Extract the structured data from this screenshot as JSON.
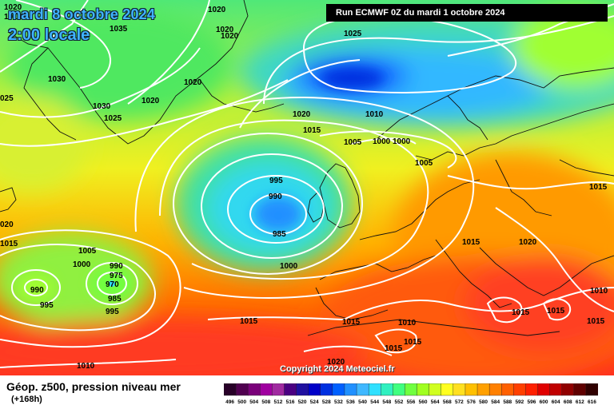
{
  "header": {
    "date": "mardi 8 octobre 2024",
    "time": "2:00 locale",
    "run": "Run ECMWF 0Z du mardi 1 octobre 2024"
  },
  "copyright": "Copyright 2024 Meteociel.fr",
  "footer": {
    "product": "Géop. z500, pression niveau mer",
    "lead": "(+168h)"
  },
  "legend": {
    "values": [
      "496",
      "500",
      "504",
      "508",
      "512",
      "516",
      "520",
      "524",
      "528",
      "532",
      "536",
      "540",
      "544",
      "548",
      "552",
      "556",
      "560",
      "564",
      "568",
      "572",
      "576",
      "580",
      "584",
      "588",
      "592",
      "596",
      "600",
      "604",
      "608",
      "612",
      "616"
    ],
    "colors": [
      "#280028",
      "#500050",
      "#7a007a",
      "#a000a0",
      "#a02aa0",
      "#4b0082",
      "#2010a0",
      "#0000c8",
      "#0030e0",
      "#0060ff",
      "#2090ff",
      "#40b8ff",
      "#30e0ff",
      "#30f0c0",
      "#40ff80",
      "#70ff40",
      "#a0ff20",
      "#d0ff20",
      "#ffff20",
      "#ffe020",
      "#ffc000",
      "#ffa000",
      "#ff8000",
      "#ff6000",
      "#ff4000",
      "#ff2000",
      "#e00000",
      "#c00000",
      "#900000",
      "#600000",
      "#300000"
    ]
  },
  "isobar_labels": [
    {
      "id": "l1",
      "text": "1020"
    },
    {
      "id": "l2",
      "text": "1035"
    },
    {
      "id": "l3",
      "text": "1020"
    },
    {
      "id": "l4",
      "text": "1020"
    },
    {
      "id": "l5",
      "text": "1025"
    },
    {
      "id": "l6",
      "text": "1030"
    },
    {
      "id": "l7",
      "text": "025"
    },
    {
      "id": "l8",
      "text": "1020"
    },
    {
      "id": "l9",
      "text": "1020"
    },
    {
      "id": "l10",
      "text": "1030"
    },
    {
      "id": "l11",
      "text": "1025"
    },
    {
      "id": "l12",
      "text": "1020"
    },
    {
      "id": "l13",
      "text": "1015"
    },
    {
      "id": "l14",
      "text": "1010"
    },
    {
      "id": "l15",
      "text": "1005"
    },
    {
      "id": "l16",
      "text": "1000"
    },
    {
      "id": "l17",
      "text": "1000"
    },
    {
      "id": "l18",
      "text": "1005"
    },
    {
      "id": "l19",
      "text": "995"
    },
    {
      "id": "l20",
      "text": "990"
    },
    {
      "id": "l21",
      "text": "985"
    },
    {
      "id": "l22",
      "text": "1000"
    },
    {
      "id": "l23",
      "text": "1015"
    },
    {
      "id": "l24",
      "text": "1020"
    },
    {
      "id": "l25",
      "text": "1015"
    },
    {
      "id": "l26",
      "text": "020"
    },
    {
      "id": "l27",
      "text": "1015"
    },
    {
      "id": "l28",
      "text": "1005"
    },
    {
      "id": "l29",
      "text": "1000"
    },
    {
      "id": "l30",
      "text": "990"
    },
    {
      "id": "l31",
      "text": "975"
    },
    {
      "id": "l32",
      "text": "970"
    },
    {
      "id": "l33",
      "text": "990"
    },
    {
      "id": "l34",
      "text": "985"
    },
    {
      "id": "l35",
      "text": "995"
    },
    {
      "id": "l36",
      "text": "995"
    },
    {
      "id": "l37",
      "text": "1015"
    },
    {
      "id": "l38",
      "text": "1015"
    },
    {
      "id": "l39",
      "text": "1010"
    },
    {
      "id": "l40",
      "text": "1015"
    },
    {
      "id": "l41",
      "text": "1015"
    },
    {
      "id": "l42",
      "text": "1015"
    },
    {
      "id": "l43",
      "text": "1015"
    },
    {
      "id": "l44",
      "text": "1010"
    },
    {
      "id": "l45",
      "text": "1015"
    },
    {
      "id": "l46",
      "text": "1010"
    },
    {
      "id": "l47",
      "text": "1020"
    },
    {
      "id": "l48",
      "text": "1020"
    },
    {
      "id": "l49",
      "text": "1015"
    }
  ]
}
